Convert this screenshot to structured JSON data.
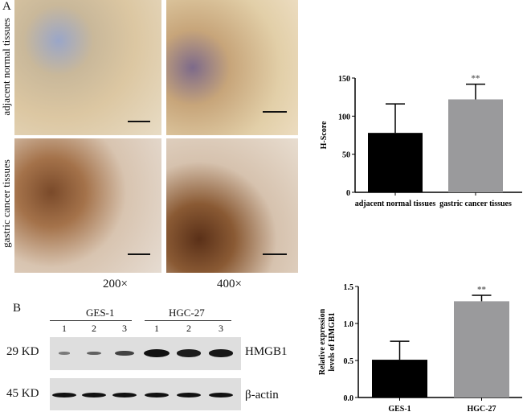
{
  "panelA": {
    "label": "A",
    "row_labels": [
      "adjacent normal tissues",
      "gastric cancer tissues"
    ],
    "magnifications": [
      "200×",
      "400×"
    ]
  },
  "panelB": {
    "label": "B",
    "groups": [
      "GES-1",
      "HGC-27"
    ],
    "lanes": [
      "1",
      "2",
      "3",
      "1",
      "2",
      "3"
    ],
    "markers": [
      "29 KD",
      "45 KD"
    ],
    "proteins": [
      "HMGB1",
      "β-actin"
    ],
    "hmgb1_band_intensity": [
      0.15,
      0.35,
      0.6,
      1.0,
      0.9,
      0.95
    ]
  },
  "chart_data": [
    {
      "type": "bar",
      "categories": [
        "adjacent normal tissues",
        "gastric cancer tissues"
      ],
      "values": [
        78,
        122
      ],
      "error": [
        38,
        20
      ],
      "colors": [
        "#000000",
        "#9a9a9c"
      ],
      "annotations": [
        "",
        "**"
      ],
      "xlabel": "",
      "ylabel": "H-Score",
      "ylim": [
        0,
        150
      ],
      "yticks": [
        "0",
        "50",
        "100",
        "150"
      ],
      "grid": false
    },
    {
      "type": "bar",
      "categories": [
        "GES-1",
        "HGC-27"
      ],
      "values": [
        0.51,
        1.3
      ],
      "error": [
        0.25,
        0.08
      ],
      "colors": [
        "#000000",
        "#9a9a9c"
      ],
      "annotations": [
        "",
        "**"
      ],
      "xlabel": "",
      "ylabel": "Relative expression levels of HMGB1",
      "ylabel_lines": [
        "Relative expression",
        "levels of HMGB1"
      ],
      "ylim": [
        0,
        1.5
      ],
      "yticks": [
        "0.0",
        "0.5",
        "1.0",
        "1.5"
      ],
      "grid": false
    }
  ]
}
